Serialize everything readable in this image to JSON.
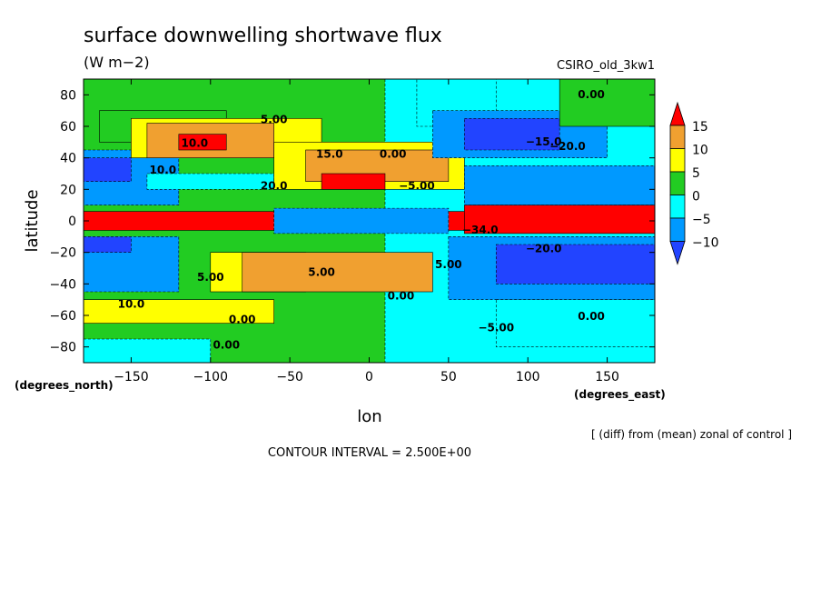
{
  "chart_data": {
    "type": "heatmap",
    "title": "surface downwelling shortwave flux",
    "units": "(W m−2)",
    "model_label": "CSIRO_old_3kw1",
    "xlabel": "lon",
    "ylabel": "latitude",
    "x_unit_note": "(degrees_east)",
    "y_unit_note": "(degrees_north)",
    "xlim": [
      -180,
      180
    ],
    "ylim": [
      -90,
      90
    ],
    "x_ticks": [
      -150,
      -100,
      -50,
      0,
      50,
      100,
      150
    ],
    "x_tick_labels": [
      "−150",
      "−100",
      "−50",
      "0",
      "50",
      "100",
      "150"
    ],
    "y_ticks": [
      80,
      60,
      40,
      20,
      0,
      -20,
      -40,
      -60,
      -80
    ],
    "y_tick_labels": [
      "80",
      "60",
      "40",
      "20",
      "0",
      "−20",
      "−40",
      "−60",
      "−80"
    ],
    "colorbar": {
      "labels": [
        "15",
        "10",
        "5",
        "0",
        "−5",
        "−10"
      ],
      "levels": [
        15,
        10,
        5,
        0,
        -5,
        -10
      ],
      "bins": [
        {
          "range": ">15",
          "color": "#ff0000"
        },
        {
          "range": "10 to 15",
          "color": "#f0a030"
        },
        {
          "range": "5 to 10",
          "color": "#ffff00"
        },
        {
          "range": "0 to 5",
          "color": "#22cc22"
        },
        {
          "range": "-5 to 0",
          "color": "#00ffff"
        },
        {
          "range": "-10 to -5",
          "color": "#0099ff"
        },
        {
          "range": "<-10",
          "color": "#2244ff"
        }
      ]
    },
    "regions": [
      {
        "lon": [
          -180,
          180
        ],
        "lat": [
          -90,
          90
        ],
        "value": 2.5
      },
      {
        "lon": [
          10,
          180
        ],
        "lat": [
          -90,
          90
        ],
        "value": -2.5
      },
      {
        "lon": [
          -180,
          -60
        ],
        "lat": [
          -65,
          -50
        ],
        "value": 7.5
      },
      {
        "lon": [
          -180,
          -120
        ],
        "lat": [
          -45,
          -10
        ],
        "value": -7.5
      },
      {
        "lon": [
          -180,
          -150
        ],
        "lat": [
          -20,
          -10
        ],
        "value": -12.5
      },
      {
        "lon": [
          -180,
          -120
        ],
        "lat": [
          10,
          45
        ],
        "value": -7.5
      },
      {
        "lon": [
          -180,
          -150
        ],
        "lat": [
          25,
          40
        ],
        "value": -12.5
      },
      {
        "lon": [
          -140,
          -60
        ],
        "lat": [
          20,
          30
        ],
        "value": -2.5
      },
      {
        "lon": [
          -170,
          -90
        ],
        "lat": [
          50,
          70
        ],
        "value": 2.5
      },
      {
        "lon": [
          -150,
          -30
        ],
        "lat": [
          40,
          65
        ],
        "value": 7.5
      },
      {
        "lon": [
          -140,
          -60
        ],
        "lat": [
          40,
          62
        ],
        "value": 12.5
      },
      {
        "lon": [
          -120,
          -90
        ],
        "lat": [
          45,
          55
        ],
        "value": 17.5
      },
      {
        "lon": [
          -60,
          60
        ],
        "lat": [
          20,
          50
        ],
        "value": 7.5
      },
      {
        "lon": [
          -40,
          50
        ],
        "lat": [
          25,
          45
        ],
        "value": 12.5
      },
      {
        "lon": [
          -30,
          10
        ],
        "lat": [
          20,
          30
        ],
        "value": 17.5
      },
      {
        "lon": [
          -100,
          -40
        ],
        "lat": [
          -45,
          -20
        ],
        "value": 7.5
      },
      {
        "lon": [
          -80,
          40
        ],
        "lat": [
          -45,
          -20
        ],
        "value": 12.5
      },
      {
        "lon": [
          30,
          80
        ],
        "lat": [
          60,
          90
        ],
        "value": -2.5
      },
      {
        "lon": [
          40,
          150
        ],
        "lat": [
          40,
          70
        ],
        "value": -7.5
      },
      {
        "lon": [
          60,
          120
        ],
        "lat": [
          45,
          65
        ],
        "value": -12.5
      },
      {
        "lon": [
          120,
          180
        ],
        "lat": [
          60,
          90
        ],
        "value": 2.5
      },
      {
        "lon": [
          60,
          180
        ],
        "lat": [
          10,
          35
        ],
        "value": -7.5
      },
      {
        "lon": [
          50,
          180
        ],
        "lat": [
          -50,
          -10
        ],
        "value": -7.5
      },
      {
        "lon": [
          80,
          180
        ],
        "lat": [
          -40,
          -15
        ],
        "value": -12.5
      },
      {
        "lon": [
          80,
          180
        ],
        "lat": [
          -80,
          -50
        ],
        "value": -2.5
      },
      {
        "lon": [
          -180,
          -100
        ],
        "lat": [
          -90,
          -75
        ],
        "value": -2.5
      },
      {
        "lon": [
          -180,
          180
        ],
        "lat": [
          -6,
          6
        ],
        "value": 17.5
      },
      {
        "lon": [
          -60,
          50
        ],
        "lat": [
          -8,
          8
        ],
        "value": -7.5
      },
      {
        "lon": [
          60,
          180
        ],
        "lat": [
          -8,
          10
        ],
        "value": 17.5
      }
    ],
    "contour_labels": [
      "0.00",
      "0.00",
      "5.00",
      "10.0",
      "15.0",
      "20.0",
      "5.00",
      "5.00",
      "10.0",
      "0.00",
      "0.00",
      "−5.00",
      "0.00",
      "−5.00",
      "−15.0",
      "−20.0",
      "−20.0",
      "10.0",
      "−34.0",
      "5.00",
      "0.00",
      "0.00"
    ]
  },
  "footer": {
    "note": "[ (diff) from (mean) zonal of control ]",
    "contour_interval": "CONTOUR INTERVAL = 2.500E+00"
  }
}
